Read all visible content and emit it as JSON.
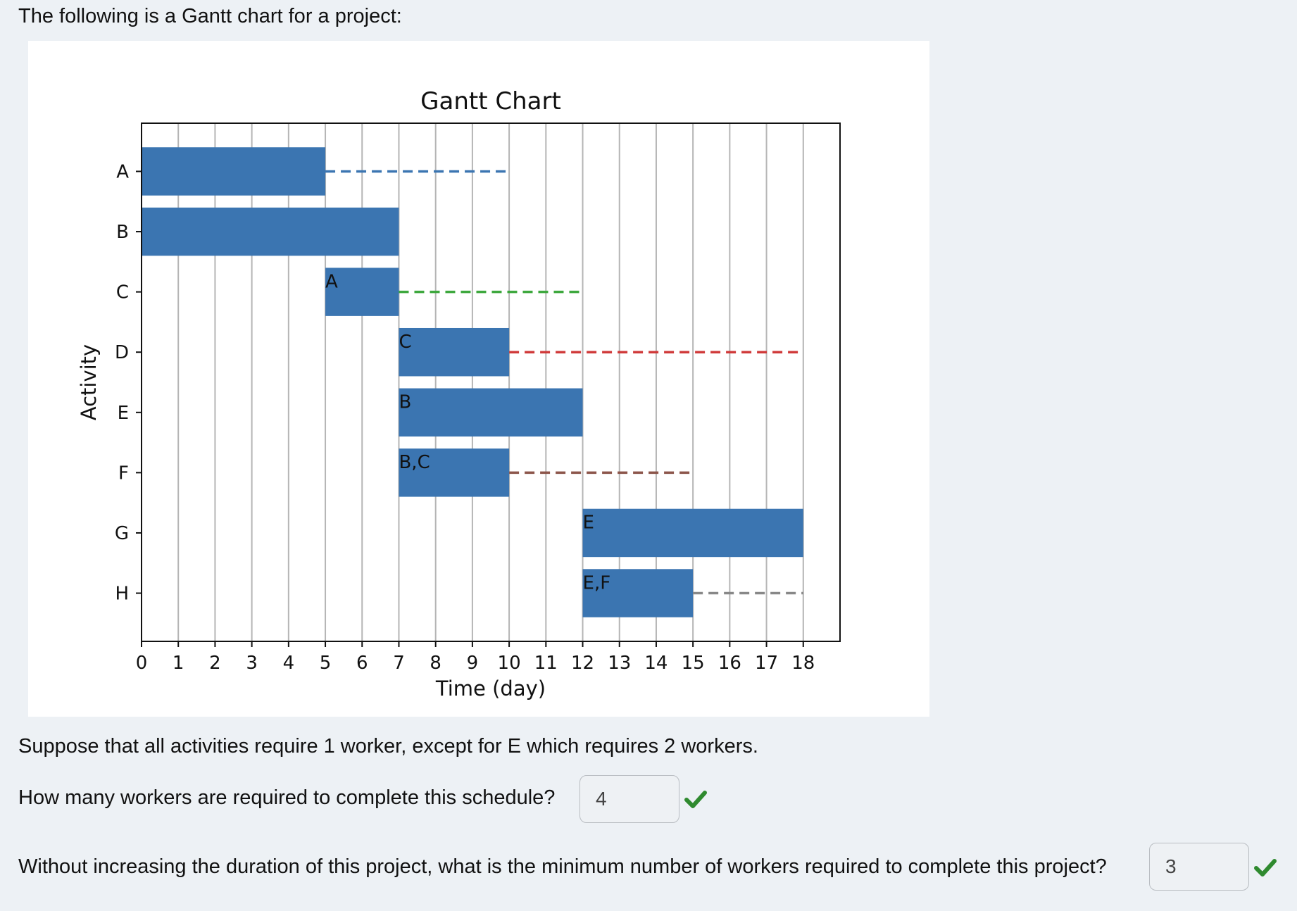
{
  "intro_text": "The following is a Gantt chart for a project:",
  "chart_data": {
    "type": "gantt",
    "title": "Gantt Chart",
    "xlabel": "Time (day)",
    "ylabel": "Activity",
    "xlim": [
      0,
      19
    ],
    "xticks": [
      0,
      1,
      2,
      3,
      4,
      5,
      6,
      7,
      8,
      9,
      10,
      11,
      12,
      13,
      14,
      15,
      16,
      17,
      18
    ],
    "grid": "vertical",
    "bar_color": "#3b75b1",
    "tasks": [
      {
        "activity": "A",
        "start": 0,
        "end": 5,
        "predecessors": "",
        "slack_end": 10,
        "slack_color": "#3b75b1"
      },
      {
        "activity": "B",
        "start": 0,
        "end": 7,
        "predecessors": "",
        "slack_end": null,
        "slack_color": null
      },
      {
        "activity": "C",
        "start": 5,
        "end": 7,
        "predecessors": "A",
        "slack_end": 12,
        "slack_color": "#3ea83e"
      },
      {
        "activity": "D",
        "start": 7,
        "end": 10,
        "predecessors": "C",
        "slack_end": 18,
        "slack_color": "#d03a3a"
      },
      {
        "activity": "E",
        "start": 7,
        "end": 12,
        "predecessors": "B",
        "slack_end": null,
        "slack_color": null
      },
      {
        "activity": "F",
        "start": 7,
        "end": 10,
        "predecessors": "B,C",
        "slack_end": 15,
        "slack_color": "#8c564b"
      },
      {
        "activity": "G",
        "start": 12,
        "end": 18,
        "predecessors": "E",
        "slack_end": null,
        "slack_color": null
      },
      {
        "activity": "H",
        "start": 12,
        "end": 15,
        "predecessors": "E,F",
        "slack_end": 18,
        "slack_color": "#888888"
      }
    ]
  },
  "statement": "Suppose that all activities require 1 worker, except for E which requires 2 workers.",
  "questions": [
    {
      "text": "How many workers are required to complete this schedule?",
      "answer": "4",
      "status": "correct",
      "status_icon": "check-icon",
      "status_color": "#2f8a2f"
    },
    {
      "text": "Without increasing the duration of this project, what is the minimum number of workers required to complete this project?",
      "answer": "3",
      "status": "correct",
      "status_icon": "check-icon",
      "status_color": "#2f8a2f"
    }
  ]
}
